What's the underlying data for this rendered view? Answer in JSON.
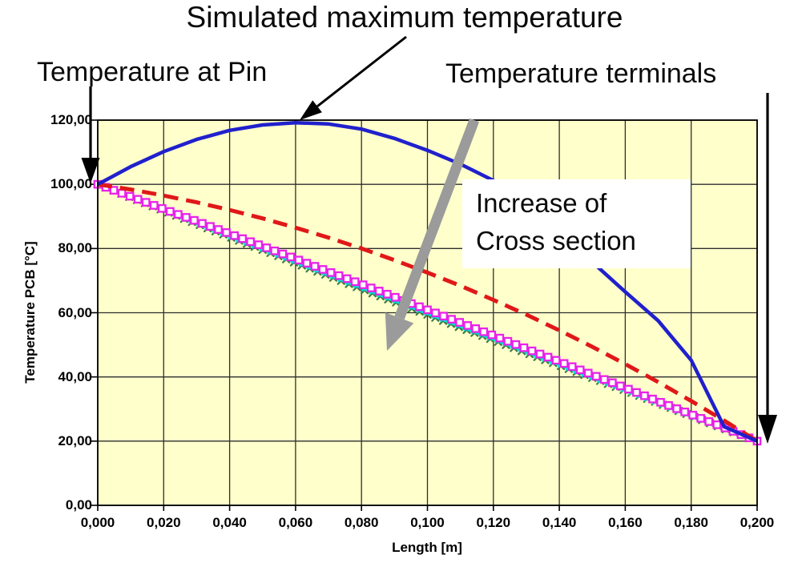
{
  "page": {
    "background": "#FFFFFF"
  },
  "annotations": {
    "simulated_max_label": "Simulated maximum temperature",
    "pin_label": "Temperature at Pin",
    "terminals_label": "Temperature terminals",
    "increase_label_line1": "Increase of",
    "increase_label_line2": "Cross section"
  },
  "chart_data": {
    "type": "line",
    "title": "",
    "xlabel": "Length [m]",
    "ylabel": "Temperature PCB [°C]",
    "xlim": [
      0,
      0.2
    ],
    "ylim": [
      0,
      120
    ],
    "grid": true,
    "legend_position": "none",
    "plot_background": "#FFFFCC",
    "grid_color": "#2E2E2E",
    "x_tick_values": [
      0,
      0.02,
      0.04,
      0.06,
      0.08,
      0.1,
      0.12,
      0.14,
      0.16,
      0.18,
      0.2
    ],
    "x_tick_labels": [
      "0,000",
      "0,020",
      "0,040",
      "0,060",
      "0,080",
      "0,100",
      "0,120",
      "0,140",
      "0,160",
      "0,180",
      "0,200"
    ],
    "y_tick_values": [
      0,
      20,
      40,
      60,
      80,
      100,
      120
    ],
    "y_tick_labels": [
      "0,00",
      "20,00",
      "40,00",
      "60,00",
      "80,00",
      "100,00",
      "120,00"
    ],
    "x": [
      0,
      0.01,
      0.02,
      0.03,
      0.04,
      0.05,
      0.06,
      0.07,
      0.08,
      0.09,
      0.1,
      0.11,
      0.12,
      0.13,
      0.14,
      0.15,
      0.16,
      0.17,
      0.18,
      0.19,
      0.2
    ],
    "series": [
      {
        "name": "green-ticks-smallest-temperature",
        "color": "#3E7A3E",
        "style": "solid",
        "marker": "tick-x",
        "values": [
          100,
          95.9,
          91.8,
          87.7,
          83.6,
          79.6,
          75.5,
          71.5,
          67.4,
          63.4,
          59.4,
          55.4,
          51.5,
          47.5,
          43.6,
          39.7,
          35.8,
          31.9,
          27.9,
          23.9,
          20
        ]
      },
      {
        "name": "cyan-x-line",
        "color": "#00DEDE",
        "style": "solid-thick",
        "marker": "x",
        "values": [
          100,
          96,
          92,
          88,
          84,
          80,
          76,
          72,
          68,
          64,
          60,
          56,
          52,
          48,
          44,
          40,
          36,
          32,
          28,
          24,
          20
        ]
      },
      {
        "name": "magenta-open-squares",
        "color": "#E822E8",
        "style": "solid",
        "marker": "square-open",
        "values": [
          100,
          96.2,
          92.3,
          88.5,
          84.6,
          80.7,
          76.8,
          72.8,
          68.9,
          64.9,
          60.9,
          56.9,
          52.9,
          48.8,
          44.8,
          40.7,
          36.6,
          32.4,
          28.3,
          24.2,
          20
        ]
      },
      {
        "name": "red-dashed",
        "color": "#E01818",
        "style": "dashed",
        "marker": "none",
        "values": [
          100,
          98.4,
          96.5,
          94.4,
          92,
          89.4,
          86.5,
          83.4,
          80,
          76.4,
          72.5,
          68.4,
          64,
          59.4,
          54.5,
          49.4,
          44,
          38.4,
          32.5,
          26.4,
          20
        ]
      },
      {
        "name": "simulated-maximum-temperature-blue",
        "color": "#2020CC",
        "style": "solid",
        "marker": "none",
        "values": [
          100,
          105.5,
          110.2,
          114,
          116.8,
          118.5,
          119.2,
          118.8,
          117.2,
          114.3,
          110.6,
          106.3,
          101.2,
          94.2,
          85,
          75.8,
          66.5,
          57.5,
          45.2,
          24.5,
          20
        ]
      }
    ],
    "endpoint_values": {
      "temperature_at_pin": 100,
      "temperature_terminals": 20
    },
    "arrow_color_grey": "#9B9B9B",
    "arrow_color_black": "#000000"
  }
}
